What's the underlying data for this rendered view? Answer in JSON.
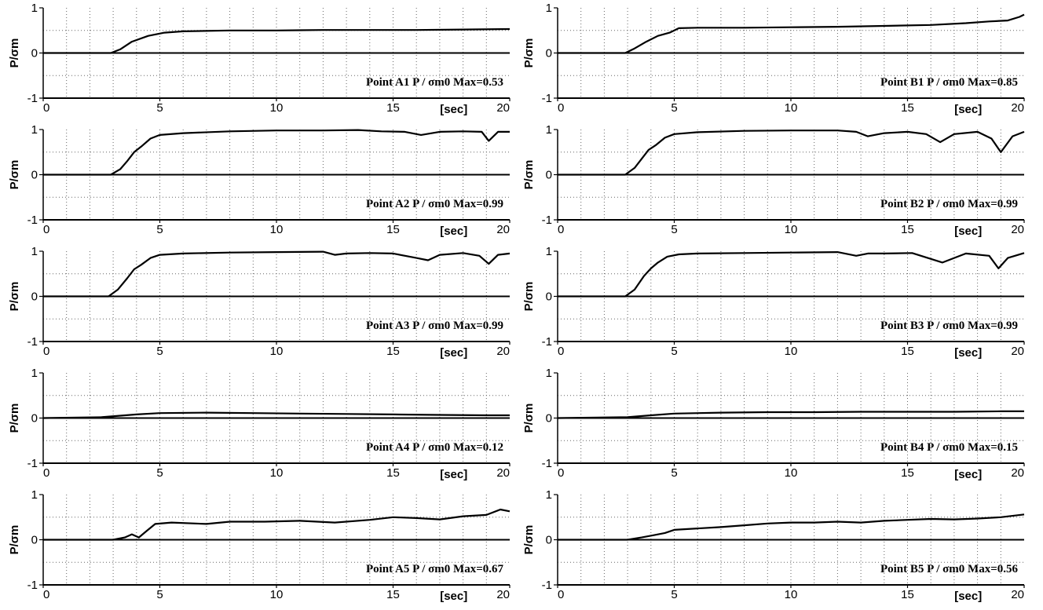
{
  "chart_data": [
    {
      "type": "line",
      "panel": "A1",
      "annotation": "Point A1  P / σm0  Max=0.53",
      "ylabel": "P/σm",
      "xunit": "[sec]",
      "xlim": [
        0,
        20
      ],
      "ylim": [
        -1,
        1
      ],
      "x_ticks": [
        "0",
        "5",
        "10",
        "15",
        "20"
      ],
      "y_ticks": [
        "-1",
        "0",
        "1"
      ],
      "grid": true,
      "series": [
        {
          "x": [
            0,
            2.9,
            3.3,
            3.8,
            4.5,
            5.2,
            6,
            8,
            10,
            12,
            14,
            16,
            18,
            20
          ],
          "y": [
            0,
            0,
            0.08,
            0.25,
            0.38,
            0.45,
            0.48,
            0.5,
            0.5,
            0.51,
            0.51,
            0.51,
            0.52,
            0.53
          ]
        }
      ]
    },
    {
      "type": "line",
      "panel": "B1",
      "annotation": "Point B1  P / σm0  Max=0.85",
      "ylabel": "P/σm",
      "xunit": "[sec]",
      "xlim": [
        0,
        20
      ],
      "ylim": [
        -1,
        1
      ],
      "x_ticks": [
        "0",
        "5",
        "10",
        "15",
        "20"
      ],
      "y_ticks": [
        "-1",
        "0",
        "1"
      ],
      "grid": true,
      "series": [
        {
          "x": [
            0,
            2.9,
            3.3,
            3.8,
            4.3,
            4.8,
            5.2,
            6,
            8,
            10,
            12,
            14,
            16,
            17.5,
            18.5,
            19.3,
            19.8,
            20
          ],
          "y": [
            0,
            0,
            0.1,
            0.25,
            0.38,
            0.45,
            0.55,
            0.56,
            0.56,
            0.57,
            0.58,
            0.6,
            0.62,
            0.66,
            0.7,
            0.72,
            0.8,
            0.85
          ]
        }
      ]
    },
    {
      "type": "line",
      "panel": "A2",
      "annotation": "Point A2  P / σm0  Max=0.99",
      "ylabel": "P/σm",
      "xunit": "[sec]",
      "xlim": [
        0,
        20
      ],
      "ylim": [
        -1,
        1
      ],
      "x_ticks": [
        "0",
        "5",
        "10",
        "15",
        "20"
      ],
      "y_ticks": [
        "-1",
        "0",
        "1"
      ],
      "grid": true,
      "series": [
        {
          "x": [
            0,
            2.9,
            3.3,
            3.6,
            3.9,
            4.2,
            4.6,
            5,
            6,
            8,
            10,
            12,
            13.5,
            14.5,
            15.5,
            16.2,
            17,
            18,
            18.8,
            19.1,
            19.5,
            20
          ],
          "y": [
            0,
            0,
            0.12,
            0.3,
            0.5,
            0.62,
            0.8,
            0.88,
            0.92,
            0.96,
            0.98,
            0.98,
            0.99,
            0.96,
            0.95,
            0.88,
            0.95,
            0.96,
            0.95,
            0.75,
            0.95,
            0.95
          ]
        }
      ]
    },
    {
      "type": "line",
      "panel": "B2",
      "annotation": "Point B2  P / σm0  Max=0.99",
      "ylabel": "P/σm",
      "xunit": "[sec]",
      "xlim": [
        0,
        20
      ],
      "ylim": [
        -1,
        1
      ],
      "x_ticks": [
        "0",
        "5",
        "10",
        "15",
        "20"
      ],
      "y_ticks": [
        "-1",
        "0",
        "1"
      ],
      "grid": true,
      "series": [
        {
          "x": [
            0,
            2.9,
            3.3,
            3.6,
            3.9,
            4.2,
            4.6,
            5,
            6,
            8,
            10,
            12,
            12.8,
            13.3,
            14,
            15,
            15.8,
            16.4,
            17,
            18,
            18.6,
            19,
            19.5,
            20
          ],
          "y": [
            0,
            0,
            0.15,
            0.35,
            0.55,
            0.65,
            0.82,
            0.9,
            0.94,
            0.97,
            0.98,
            0.98,
            0.95,
            0.85,
            0.92,
            0.95,
            0.9,
            0.72,
            0.9,
            0.95,
            0.8,
            0.5,
            0.85,
            0.95
          ]
        }
      ]
    },
    {
      "type": "line",
      "panel": "A3",
      "annotation": "Point A3  P / σm0  Max=0.99",
      "ylabel": "P/σm",
      "xunit": "[sec]",
      "xlim": [
        0,
        20
      ],
      "ylim": [
        -1,
        1
      ],
      "x_ticks": [
        "0",
        "5",
        "10",
        "15",
        "20"
      ],
      "y_ticks": [
        "-1",
        "0",
        "1"
      ],
      "grid": true,
      "series": [
        {
          "x": [
            0,
            2.8,
            3.2,
            3.6,
            3.9,
            4.2,
            4.6,
            5,
            6,
            8,
            10,
            12,
            12.5,
            13,
            14,
            15,
            16,
            16.5,
            17,
            18,
            18.7,
            19.1,
            19.5,
            20
          ],
          "y": [
            0,
            0,
            0.15,
            0.4,
            0.6,
            0.7,
            0.85,
            0.92,
            0.95,
            0.97,
            0.98,
            0.99,
            0.92,
            0.95,
            0.96,
            0.95,
            0.85,
            0.8,
            0.92,
            0.96,
            0.9,
            0.72,
            0.92,
            0.95
          ]
        }
      ]
    },
    {
      "type": "line",
      "panel": "B3",
      "annotation": "Point B3  P / σm0  Max=0.99",
      "ylabel": "P/σm",
      "xunit": "[sec]",
      "xlim": [
        0,
        20
      ],
      "ylim": [
        -1,
        1
      ],
      "x_ticks": [
        "0",
        "5",
        "10",
        "15",
        "20"
      ],
      "y_ticks": [
        "-1",
        "0",
        "1"
      ],
      "grid": true,
      "series": [
        {
          "x": [
            0,
            2.9,
            3.3,
            3.7,
            4,
            4.3,
            4.7,
            5.2,
            6,
            8,
            10,
            12,
            12.8,
            13.3,
            14,
            15.2,
            16.5,
            17.5,
            18.5,
            18.9,
            19.3,
            20
          ],
          "y": [
            0,
            0,
            0.15,
            0.45,
            0.62,
            0.75,
            0.88,
            0.93,
            0.95,
            0.96,
            0.97,
            0.98,
            0.9,
            0.95,
            0.95,
            0.96,
            0.75,
            0.95,
            0.9,
            0.62,
            0.85,
            0.96
          ]
        }
      ]
    },
    {
      "type": "line",
      "panel": "A4",
      "annotation": "Point A4  P / σm0  Max=0.12",
      "ylabel": "P/σm",
      "xunit": "[sec]",
      "xlim": [
        0,
        20
      ],
      "ylim": [
        -1,
        1
      ],
      "x_ticks": [
        "0",
        "5",
        "10",
        "15",
        "20"
      ],
      "y_ticks": [
        "-1",
        "0",
        "1"
      ],
      "grid": true,
      "series": [
        {
          "x": [
            0,
            2.5,
            4,
            5,
            7,
            9,
            11,
            13,
            15,
            17,
            19,
            20
          ],
          "y": [
            0,
            0.02,
            0.08,
            0.11,
            0.12,
            0.11,
            0.1,
            0.09,
            0.08,
            0.07,
            0.06,
            0.06
          ]
        }
      ]
    },
    {
      "type": "line",
      "panel": "B4",
      "annotation": "Point B4  P / σm0  Max=0.15",
      "ylabel": "P/σm",
      "xunit": "[sec]",
      "xlim": [
        0,
        20
      ],
      "ylim": [
        -1,
        1
      ],
      "x_ticks": [
        "0",
        "5",
        "10",
        "15",
        "20"
      ],
      "y_ticks": [
        "-1",
        "0",
        "1"
      ],
      "grid": true,
      "series": [
        {
          "x": [
            0,
            3,
            4,
            5,
            7,
            9,
            11,
            13,
            15,
            17,
            19,
            20
          ],
          "y": [
            0,
            0.02,
            0.06,
            0.1,
            0.12,
            0.13,
            0.13,
            0.14,
            0.14,
            0.14,
            0.15,
            0.15
          ]
        }
      ]
    },
    {
      "type": "line",
      "panel": "A5",
      "annotation": "Point A5  P / σm0  Max=0.67",
      "ylabel": "P/σm",
      "xunit": "[sec]",
      "xlim": [
        0,
        20
      ],
      "ylim": [
        -1,
        1
      ],
      "x_ticks": [
        "0",
        "5",
        "10",
        "15",
        "20"
      ],
      "y_ticks": [
        "-1",
        "0",
        "1"
      ],
      "grid": true,
      "series": [
        {
          "x": [
            0,
            3,
            3.5,
            3.8,
            4.1,
            4.4,
            4.8,
            5.5,
            7,
            8,
            9.5,
            11,
            12.5,
            14,
            15,
            16,
            17,
            18,
            19,
            19.6,
            20
          ],
          "y": [
            0,
            0,
            0.05,
            0.12,
            0.05,
            0.18,
            0.35,
            0.38,
            0.35,
            0.4,
            0.4,
            0.42,
            0.38,
            0.44,
            0.5,
            0.48,
            0.45,
            0.52,
            0.55,
            0.67,
            0.63
          ]
        }
      ]
    },
    {
      "type": "line",
      "panel": "B5",
      "annotation": "Point B5  P / σm0  Max=0.56",
      "ylabel": "P/σm",
      "xunit": "[sec]",
      "xlim": [
        0,
        20
      ],
      "ylim": [
        -1,
        1
      ],
      "x_ticks": [
        "0",
        "5",
        "10",
        "15",
        "20"
      ],
      "y_ticks": [
        "-1",
        "0",
        "1"
      ],
      "grid": true,
      "series": [
        {
          "x": [
            0,
            3,
            3.6,
            4.1,
            4.6,
            5,
            6,
            7,
            8,
            9,
            10,
            11,
            12,
            13,
            14,
            15,
            16,
            17,
            18,
            19,
            20
          ],
          "y": [
            0,
            0,
            0.05,
            0.1,
            0.15,
            0.22,
            0.25,
            0.28,
            0.32,
            0.36,
            0.38,
            0.38,
            0.4,
            0.38,
            0.42,
            0.44,
            0.46,
            0.45,
            0.47,
            0.5,
            0.56
          ]
        }
      ]
    }
  ]
}
